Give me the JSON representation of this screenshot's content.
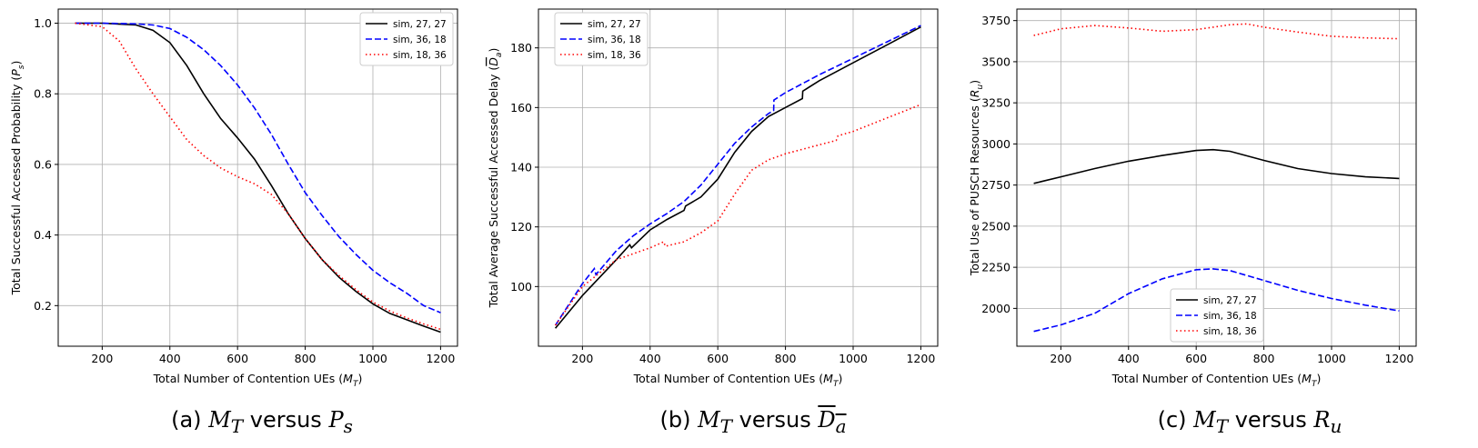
{
  "captions": [
    {
      "letter": "(a)",
      "xvar": "M",
      "xsub": "T",
      "word": "versus",
      "yvar": "P",
      "ysub": "s",
      "overline": false
    },
    {
      "letter": "(b)",
      "xvar": "M",
      "xsub": "T",
      "word": "versus",
      "yvar": "D",
      "ysub": "a",
      "overline": true
    },
    {
      "letter": "(c)",
      "xvar": "M",
      "xsub": "T",
      "word": "versus",
      "yvar": "R",
      "ysub": "u",
      "overline": false
    }
  ],
  "colors": {
    "sim_27_27": "#000000",
    "sim_36_18": "#0000ff",
    "sim_18_36": "#ff0000",
    "grid": "#b0b0b0"
  },
  "chart_data": [
    {
      "type": "line",
      "xlabel": "Total Number of Contention UEs (M_T)",
      "ylabel": "Total Successful Accessed Probability (P_s)",
      "xlim": [
        70,
        1250
      ],
      "ylim": [
        0.085,
        1.04
      ],
      "xticks": [
        200,
        400,
        600,
        800,
        1000,
        1200
      ],
      "yticks": [
        0.2,
        0.4,
        0.6,
        0.8,
        1.0
      ],
      "ytick_labels": [
        "0.2",
        "0.4",
        "0.6",
        "0.8",
        "1.0"
      ],
      "grid": true,
      "legend": "top-right",
      "series": [
        {
          "name": "sim, 27, 27",
          "style": "solid",
          "color": "#000000",
          "x": [
            120,
            200,
            300,
            350,
            400,
            450,
            500,
            550,
            600,
            650,
            700,
            750,
            800,
            850,
            900,
            950,
            1000,
            1050,
            1100,
            1150,
            1200
          ],
          "y": [
            1.0,
            1.0,
            0.995,
            0.98,
            0.945,
            0.88,
            0.8,
            0.73,
            0.675,
            0.615,
            0.54,
            0.46,
            0.39,
            0.33,
            0.28,
            0.24,
            0.205,
            0.178,
            0.16,
            0.142,
            0.125
          ]
        },
        {
          "name": "sim, 36, 18",
          "style": "dashed",
          "color": "#0000ff",
          "x": [
            120,
            200,
            300,
            350,
            400,
            450,
            500,
            550,
            600,
            650,
            700,
            750,
            800,
            850,
            900,
            950,
            1000,
            1050,
            1100,
            1150,
            1200
          ],
          "y": [
            1.0,
            1.0,
            0.998,
            0.995,
            0.985,
            0.96,
            0.925,
            0.88,
            0.825,
            0.76,
            0.685,
            0.6,
            0.52,
            0.455,
            0.395,
            0.345,
            0.3,
            0.265,
            0.235,
            0.2,
            0.18
          ]
        },
        {
          "name": "sim, 18, 36",
          "style": "dotted",
          "color": "#ff0000",
          "x": [
            120,
            200,
            250,
            300,
            350,
            400,
            450,
            500,
            550,
            600,
            650,
            700,
            750,
            800,
            850,
            900,
            950,
            1000,
            1050,
            1100,
            1150,
            1200
          ],
          "y": [
            1.0,
            0.99,
            0.95,
            0.87,
            0.8,
            0.735,
            0.67,
            0.625,
            0.59,
            0.565,
            0.545,
            0.515,
            0.46,
            0.39,
            0.33,
            0.285,
            0.245,
            0.21,
            0.185,
            0.165,
            0.148,
            0.133
          ]
        }
      ]
    },
    {
      "type": "line",
      "xlabel": "Total Number of Contention UEs (M_T)",
      "ylabel": "Total Average Successful Accessed Delay (D_a)",
      "xlim": [
        70,
        1250
      ],
      "ylim": [
        80,
        193
      ],
      "xticks": [
        200,
        400,
        600,
        800,
        1000,
        1200
      ],
      "yticks": [
        100,
        120,
        140,
        160,
        180
      ],
      "ytick_labels": [
        "100",
        "120",
        "140",
        "160",
        "180"
      ],
      "grid": true,
      "legend": "top-left",
      "series": [
        {
          "name": "sim, 27, 27",
          "style": "solid",
          "color": "#000000",
          "x": [
            120,
            200,
            300,
            340,
            345,
            400,
            450,
            500,
            505,
            550,
            600,
            650,
            700,
            750,
            800,
            850,
            851,
            900,
            1000,
            1100,
            1200
          ],
          "y": [
            86,
            97,
            109,
            114,
            113,
            119,
            122.5,
            125.5,
            127,
            130,
            136,
            145,
            152,
            157,
            160,
            163,
            165.5,
            169,
            175,
            181,
            187
          ]
        },
        {
          "name": "sim, 36, 18",
          "style": "dashed",
          "color": "#0000ff",
          "x": [
            120,
            200,
            235,
            240,
            300,
            350,
            400,
            450,
            500,
            550,
            600,
            650,
            700,
            750,
            765,
            766,
            800,
            900,
            1000,
            1100,
            1200
          ],
          "y": [
            87,
            101,
            106,
            104,
            112,
            117,
            121,
            124.5,
            128.5,
            134,
            141,
            148,
            153.5,
            158,
            159,
            162.5,
            165,
            171,
            176.5,
            182,
            187.5
          ]
        },
        {
          "name": "sim, 18, 36",
          "style": "dotted",
          "color": "#ff0000",
          "x": [
            120,
            200,
            300,
            350,
            400,
            440,
            445,
            500,
            550,
            600,
            650,
            700,
            750,
            800,
            850,
            950,
            955,
            1000,
            1100,
            1200
          ],
          "y": [
            87,
            100,
            109,
            111,
            113,
            115,
            113.5,
            115,
            118,
            122,
            131,
            139,
            142.5,
            144.5,
            146,
            149,
            150.5,
            152,
            156.5,
            161
          ]
        }
      ]
    },
    {
      "type": "line",
      "xlabel": "Total Number of Contention UEs (M_T)",
      "ylabel": "Total Use of PUSCH Resources (R_u)",
      "xlim": [
        70,
        1250
      ],
      "ylim": [
        1770,
        3820
      ],
      "xticks": [
        200,
        400,
        600,
        800,
        1000,
        1200
      ],
      "yticks": [
        2000,
        2250,
        2500,
        2750,
        3000,
        3250,
        3500,
        3750
      ],
      "ytick_labels": [
        "2000",
        "2250",
        "2500",
        "2750",
        "3000",
        "3250",
        "3500",
        "3750"
      ],
      "grid": true,
      "legend": "bottom-center",
      "series": [
        {
          "name": "sim, 27, 27",
          "style": "solid",
          "color": "#000000",
          "x": [
            120,
            200,
            300,
            400,
            500,
            600,
            650,
            700,
            800,
            900,
            1000,
            1100,
            1200
          ],
          "y": [
            2760,
            2800,
            2850,
            2895,
            2930,
            2960,
            2965,
            2955,
            2900,
            2850,
            2820,
            2800,
            2790
          ]
        },
        {
          "name": "sim, 36, 18",
          "style": "dashed",
          "color": "#0000ff",
          "x": [
            120,
            200,
            300,
            400,
            500,
            600,
            650,
            700,
            800,
            900,
            1000,
            1100,
            1200
          ],
          "y": [
            1860,
            1900,
            1970,
            2090,
            2180,
            2235,
            2240,
            2230,
            2170,
            2110,
            2060,
            2020,
            1985
          ]
        },
        {
          "name": "sim, 18, 36",
          "style": "dotted",
          "color": "#ff0000",
          "x": [
            120,
            200,
            300,
            400,
            500,
            600,
            700,
            750,
            800,
            900,
            1000,
            1100,
            1200
          ],
          "y": [
            3660,
            3700,
            3720,
            3705,
            3685,
            3695,
            3725,
            3730,
            3710,
            3680,
            3655,
            3645,
            3640
          ]
        }
      ]
    }
  ]
}
